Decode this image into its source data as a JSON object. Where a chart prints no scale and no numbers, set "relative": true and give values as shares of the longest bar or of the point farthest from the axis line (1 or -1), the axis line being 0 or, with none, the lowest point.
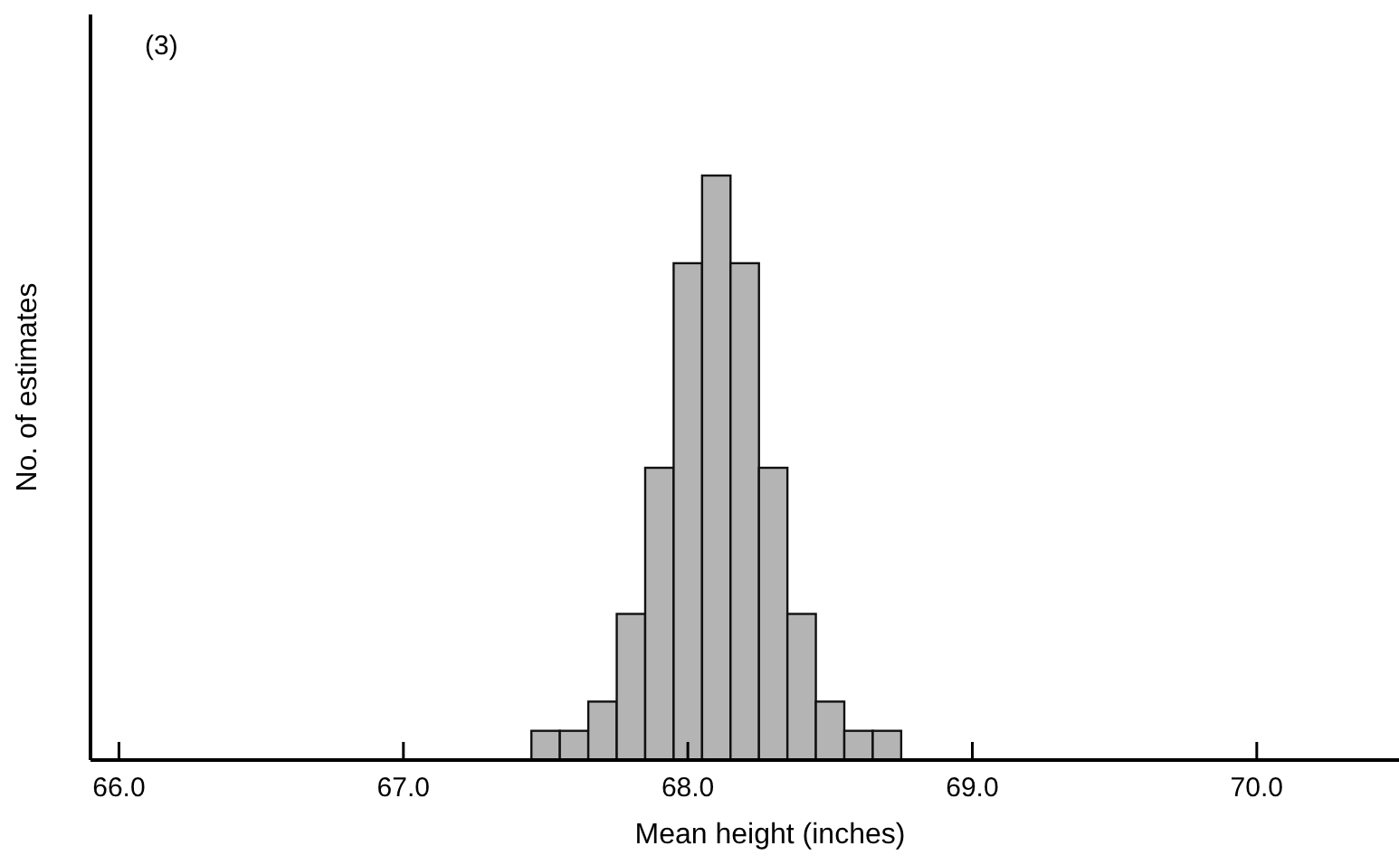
{
  "chart_data": {
    "type": "bar",
    "relative": true,
    "xlabel": "Mean height (inches)",
    "ylabel": "No. of estimates",
    "annotations": [
      "(3)"
    ],
    "x": [
      67.5,
      67.6,
      67.7,
      67.8,
      67.9,
      68.0,
      68.1,
      68.2,
      68.3,
      68.4,
      68.5,
      68.6,
      68.7
    ],
    "values": [
      0.05,
      0.05,
      0.1,
      0.25,
      0.5,
      0.85,
      1,
      0.85,
      0.5,
      0.25,
      0.1,
      0.05,
      0.05
    ],
    "color": "#b4b4b4",
    "xlim": [
      65.9,
      70.5
    ],
    "xticks": [
      {
        "value": 66,
        "label": "66.0"
      },
      {
        "value": 67,
        "label": "67.0"
      },
      {
        "value": 68,
        "label": "68.0"
      },
      {
        "value": 69,
        "label": "69.0"
      },
      {
        "value": 70,
        "label": "70.0"
      }
    ]
  }
}
